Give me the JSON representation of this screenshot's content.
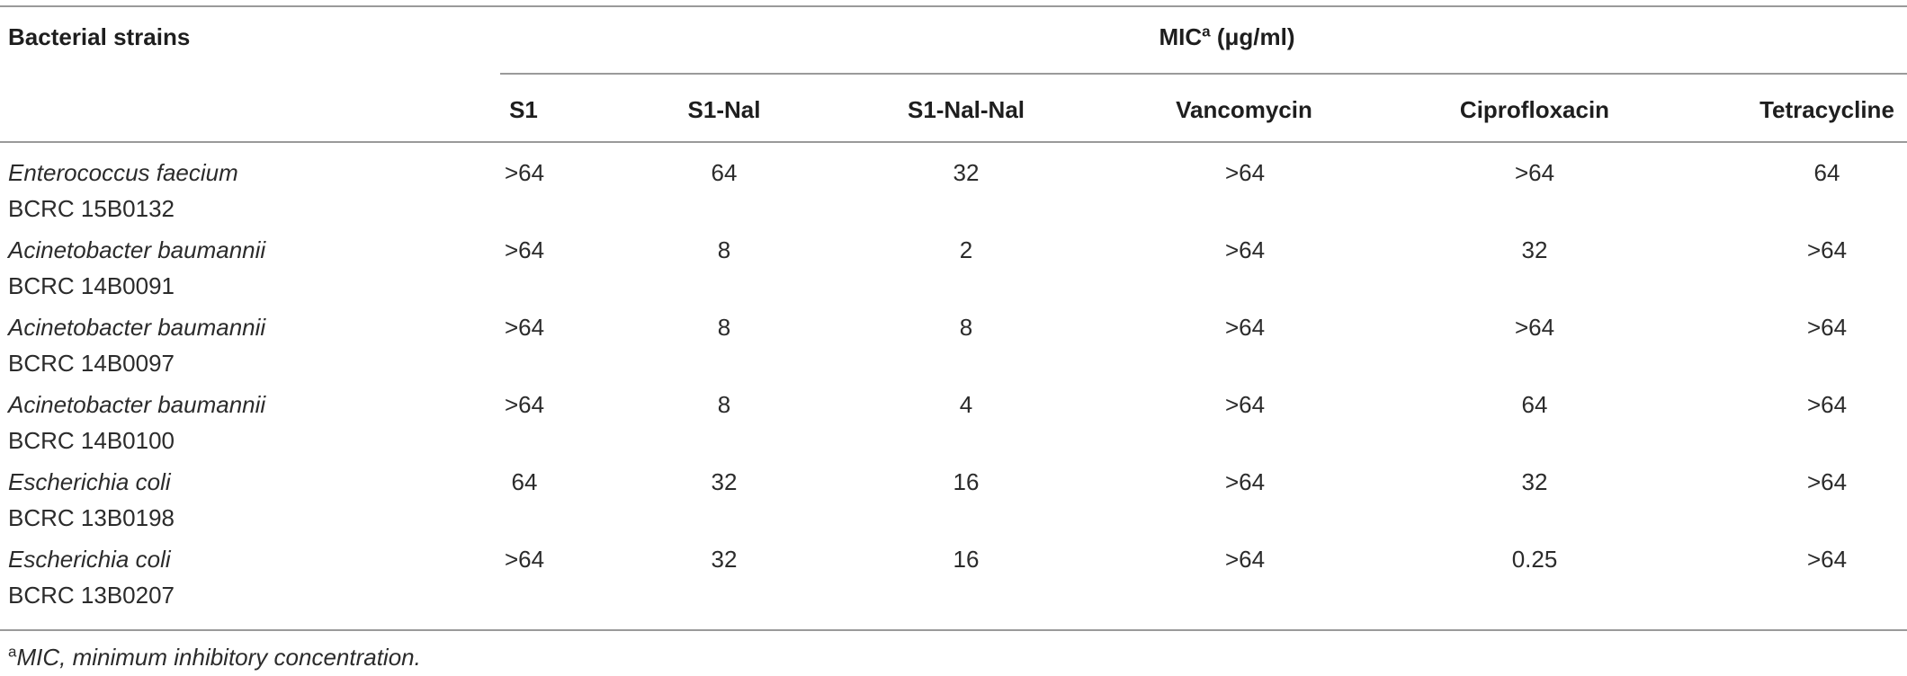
{
  "table": {
    "header": {
      "strain_label": "Bacterial strains",
      "group_label": "MIC",
      "group_sup": "a",
      "group_unit": "(μg/ml)",
      "columns": [
        "S1",
        "S1-Nal",
        "S1-Nal-Nal",
        "Vancomycin",
        "Ciprofloxacin",
        "Tetracycline"
      ]
    },
    "rows": [
      {
        "species": "Enterococcus faecium",
        "id": "BCRC 15B0132",
        "values": [
          ">64",
          "64",
          "32",
          ">64",
          ">64",
          "64"
        ]
      },
      {
        "species": "Acinetobacter baumannii",
        "id": "BCRC 14B0091",
        "values": [
          ">64",
          "8",
          "2",
          ">64",
          "32",
          ">64"
        ]
      },
      {
        "species": "Acinetobacter baumannii",
        "id": "BCRC 14B0097",
        "values": [
          ">64",
          "8",
          "8",
          ">64",
          ">64",
          ">64"
        ]
      },
      {
        "species": "Acinetobacter baumannii",
        "id": "BCRC 14B0100",
        "values": [
          ">64",
          "8",
          "4",
          ">64",
          "64",
          ">64"
        ]
      },
      {
        "species": "Escherichia coli",
        "id": "BCRC 13B0198",
        "values": [
          "64",
          "32",
          "16",
          ">64",
          "32",
          ">64"
        ]
      },
      {
        "species": "Escherichia coli",
        "id": "BCRC 13B0207",
        "values": [
          ">64",
          "32",
          "16",
          ">64",
          "0.25",
          ">64"
        ]
      }
    ],
    "footnote": {
      "sup": "a",
      "text": "MIC, minimum inhibitory concentration."
    }
  }
}
